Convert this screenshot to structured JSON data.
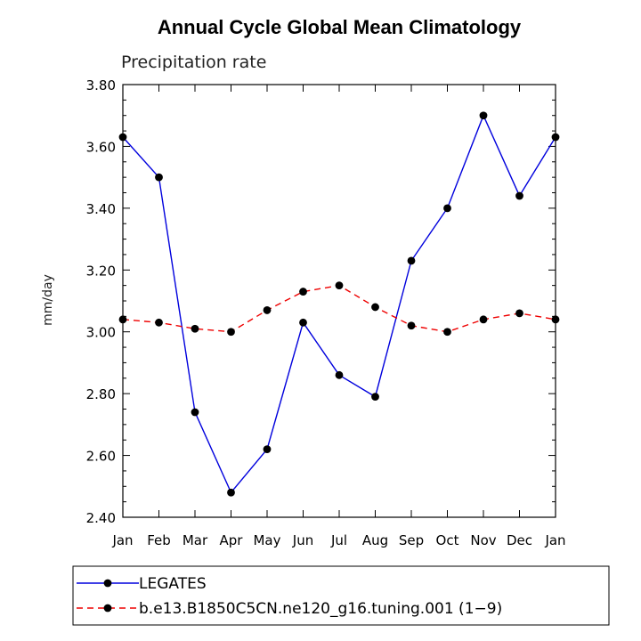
{
  "chart_data": {
    "type": "line",
    "title": "Annual Cycle Global Mean Climatology",
    "subtitle": "Precipitation rate",
    "xlabel": "",
    "ylabel": "mm/day",
    "categories": [
      "Jan",
      "Feb",
      "Mar",
      "Apr",
      "May",
      "Jun",
      "Jul",
      "Aug",
      "Sep",
      "Oct",
      "Nov",
      "Dec",
      "Jan"
    ],
    "ylim": [
      2.4,
      3.8
    ],
    "yticks": [
      "2.40",
      "2.60",
      "2.80",
      "3.00",
      "3.20",
      "3.40",
      "3.60",
      "3.80"
    ],
    "grid": false,
    "legend_position": "bottom",
    "series": [
      {
        "name": "LEGATES",
        "color": "#0000dd",
        "style": "solid",
        "values": [
          3.63,
          3.5,
          2.74,
          2.48,
          2.62,
          3.03,
          2.86,
          2.79,
          3.23,
          3.4,
          3.7,
          3.44,
          3.63
        ]
      },
      {
        "name": "b.e13.B1850C5CN.ne120_g16.tuning.001 (1−9)",
        "color": "#ee0000",
        "style": "dashed",
        "values": [
          3.04,
          3.03,
          3.01,
          3.0,
          3.07,
          3.13,
          3.15,
          3.08,
          3.02,
          3.0,
          3.04,
          3.06,
          3.04
        ]
      }
    ]
  }
}
